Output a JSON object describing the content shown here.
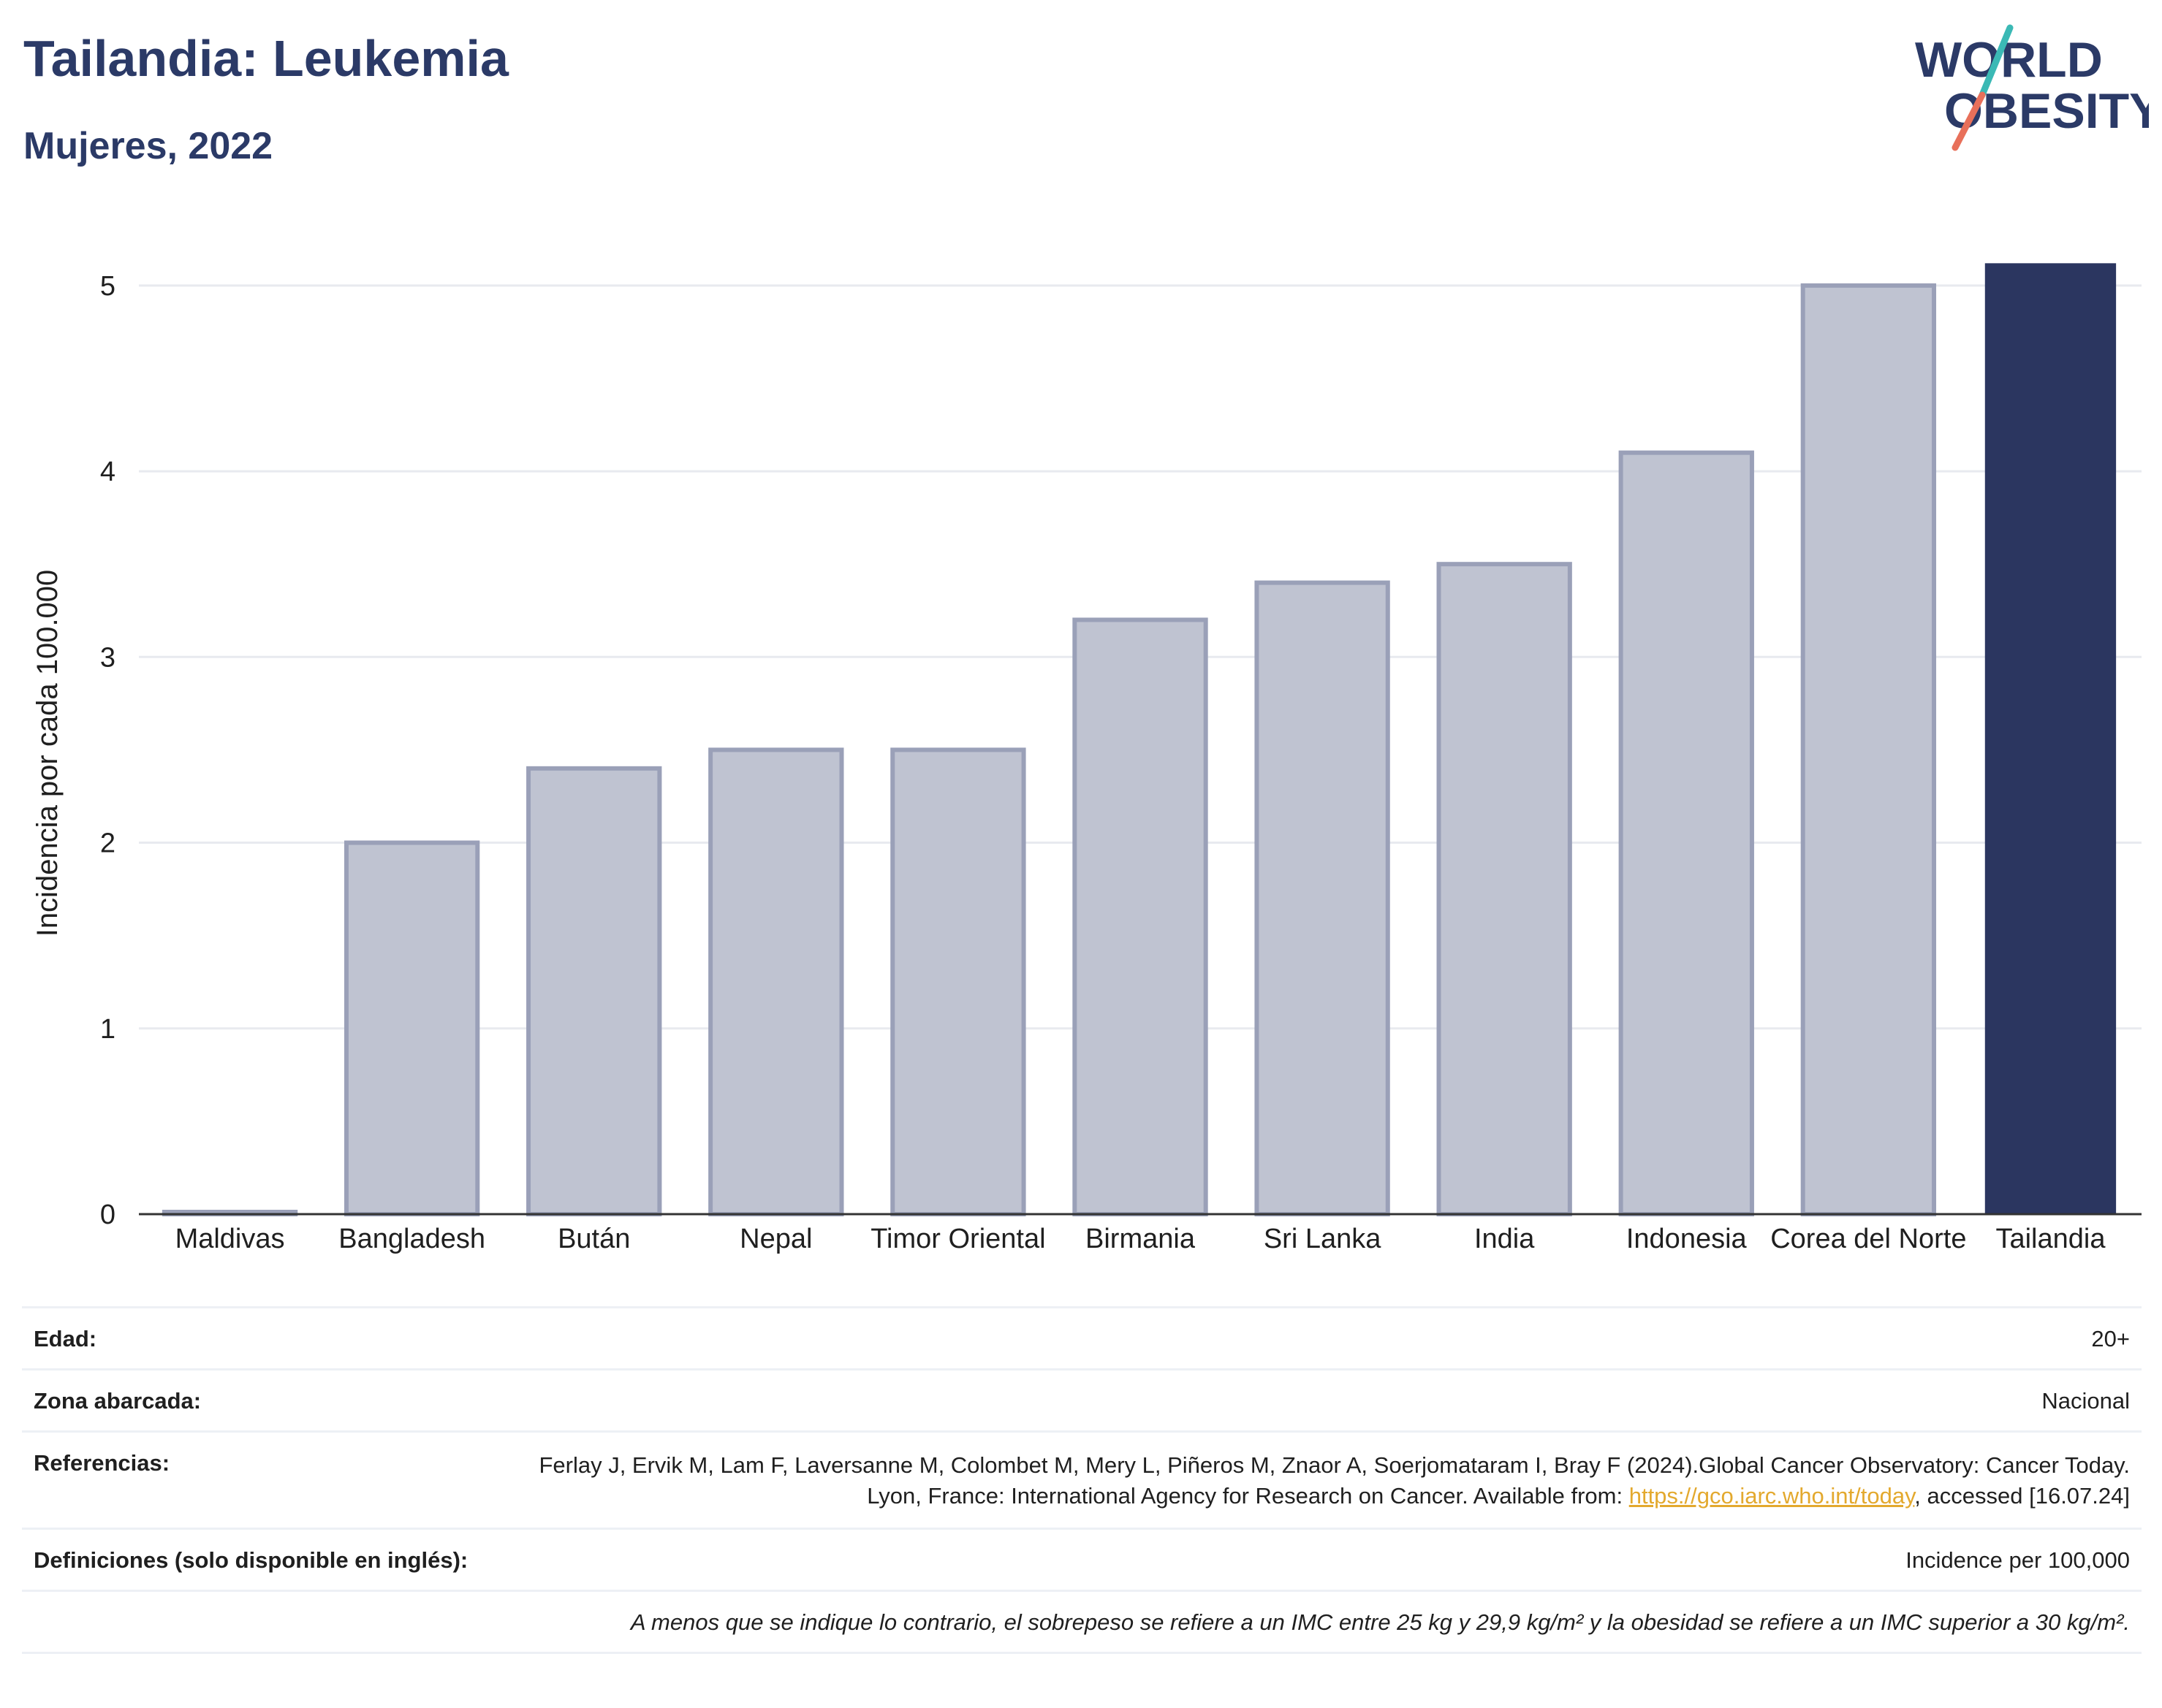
{
  "header": {
    "title": "Tailandia: Leukemia",
    "subtitle": "Mujeres, 2022"
  },
  "logo": {
    "line1": "WORLD",
    "line2": "OBESITY",
    "accent_colors": [
      "#3bb9b5",
      "#e8705a"
    ]
  },
  "chart_data": {
    "type": "bar",
    "categories": [
      "Maldivas",
      "Bangladesh",
      "Bután",
      "Nepal",
      "Timor Oriental",
      "Birmania",
      "Sri Lanka",
      "India",
      "Indonesia",
      "Corea del Norte",
      "Tailandia"
    ],
    "values": [
      0.0,
      2.0,
      2.4,
      2.5,
      2.5,
      3.2,
      3.4,
      3.5,
      4.1,
      5.0,
      5.12
    ],
    "highlight": "Tailandia",
    "ylabel": "Incidencia por cada 100.000",
    "xlabel": "",
    "ylim": [
      0,
      5.2
    ],
    "yticks": [
      0,
      1,
      2,
      3,
      4,
      5
    ],
    "grid": true,
    "colors": {
      "bar": "#bfc3d1",
      "bar_edge": "#9aa0b8",
      "highlight": "#2b3660",
      "grid": "#e8eaef",
      "axis": "#333333"
    }
  },
  "info": {
    "age_label": "Edad:",
    "age_value": "20+",
    "area_label": "Zona abarcada:",
    "area_value": "Nacional",
    "refs_label": "Referencias:",
    "refs_text_1": "Ferlay J, Ervik M, Lam F, Laversanne M, Colombet M, Mery L, Piñeros M, Znaor A, Soerjomataram I, Bray F (2024).Global Cancer Observatory: Cancer Today. Lyon, France: International Agency for Research on Cancer. Available from: ",
    "refs_link": "https://gco.iarc.who.int/today",
    "refs_text_2": ", accessed [16.07.24]",
    "defs_label": "Definiciones (solo disponible en inglés):",
    "defs_value": "Incidence per 100,000",
    "note": "A menos que se indique lo contrario, el sobrepeso se refiere a un IMC entre 25 kg y 29,9 kg/m² y la obesidad se refiere a un IMC superior a 30 kg/m²."
  }
}
